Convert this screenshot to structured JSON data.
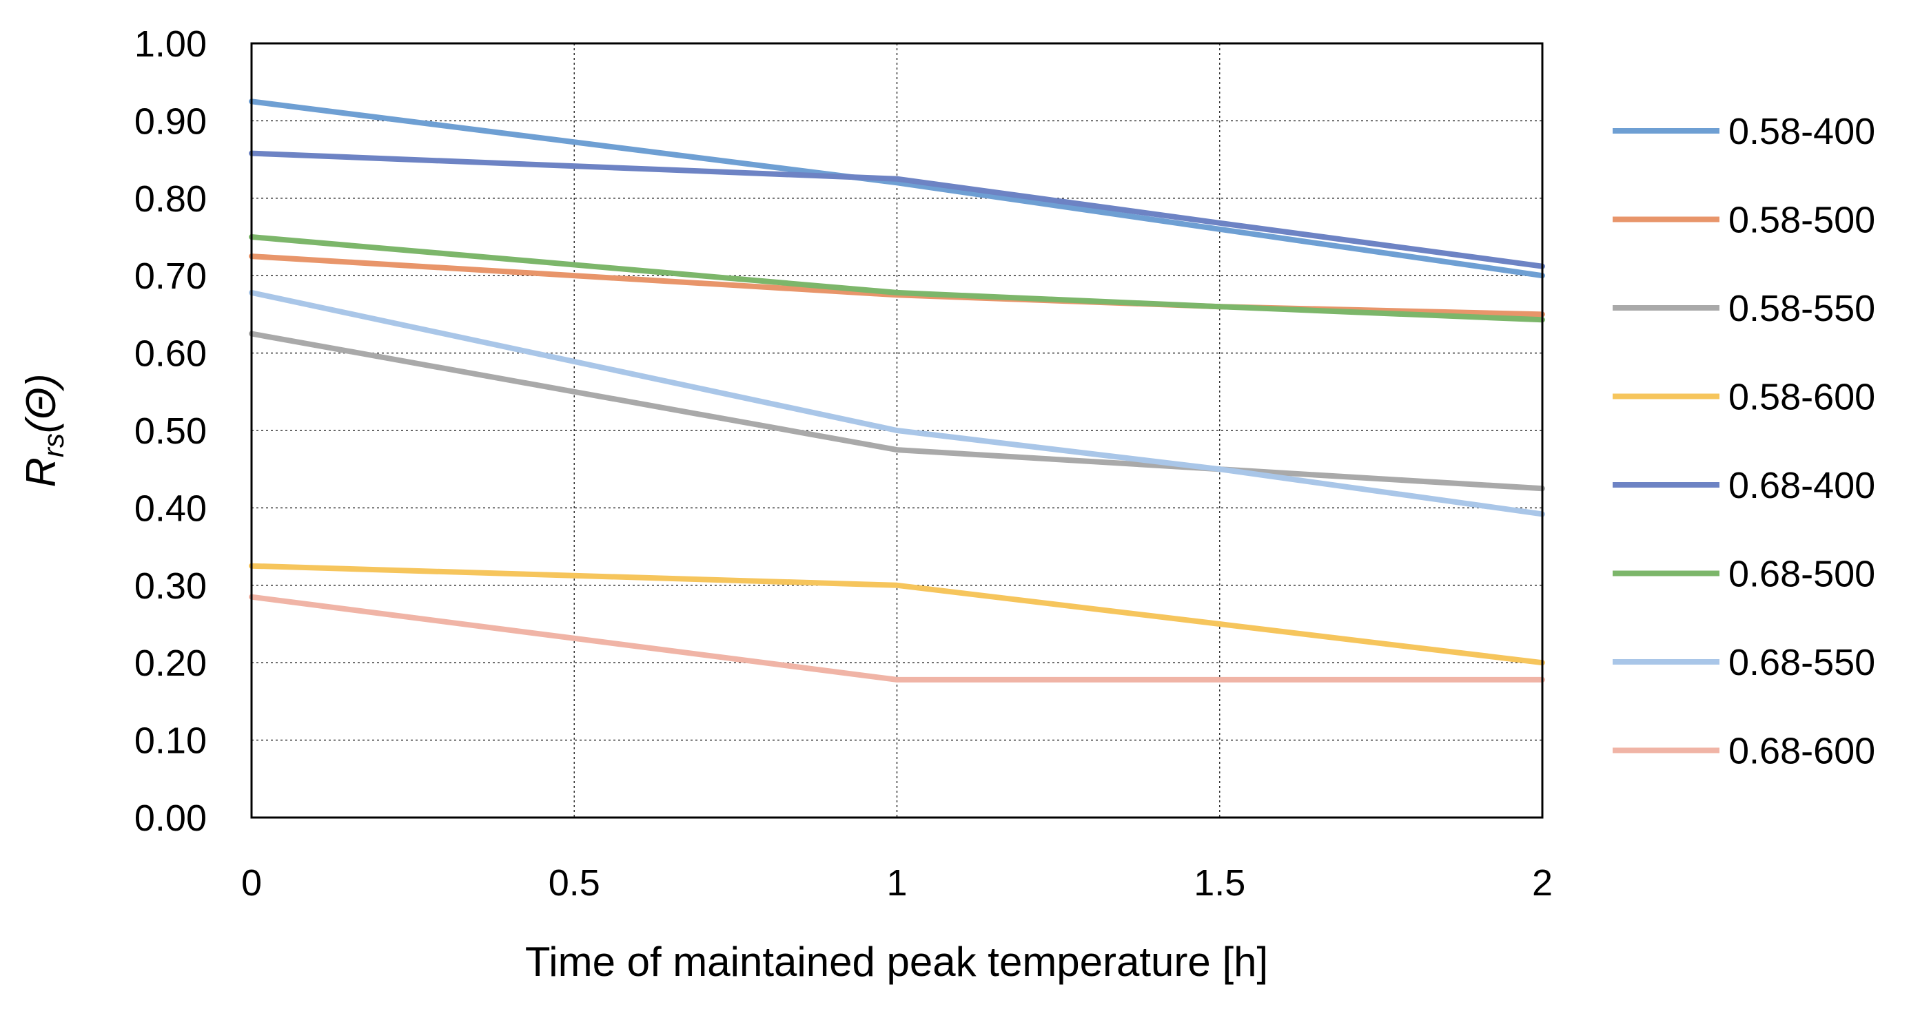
{
  "chart_data": {
    "type": "line",
    "title": "",
    "xlabel": "Time of maintained peak temperature [h]",
    "ylabel": {
      "main": "R",
      "sub": "rs",
      "arg": "(Θ)"
    },
    "x": [
      0,
      1,
      1.5,
      2
    ],
    "xlim": [
      0,
      2
    ],
    "ylim": [
      0,
      1
    ],
    "xticks": [
      "0",
      "0.5",
      "1",
      "1.5",
      "2"
    ],
    "yticks": [
      "0.00",
      "0.10",
      "0.20",
      "0.30",
      "0.40",
      "0.50",
      "0.60",
      "0.70",
      "0.80",
      "0.90",
      "1.00"
    ],
    "grid": true,
    "legend_position": "right",
    "series": [
      {
        "name": "0.58-400",
        "color": "#6e9fd3",
        "values": [
          0.925,
          0.82,
          0.76,
          0.7
        ]
      },
      {
        "name": "0.58-500",
        "color": "#e8956a",
        "values": [
          0.725,
          0.675,
          0.66,
          0.65
        ]
      },
      {
        "name": "0.58-550",
        "color": "#a9a9a9",
        "values": [
          0.625,
          0.475,
          0.45,
          0.425
        ]
      },
      {
        "name": "0.58-600",
        "color": "#f6c55c",
        "values": [
          0.325,
          0.3,
          0.25,
          0.2
        ]
      },
      {
        "name": "0.68-400",
        "color": "#6d83c4",
        "values": [
          0.858,
          0.825,
          0.768,
          0.712
        ]
      },
      {
        "name": "0.68-500",
        "color": "#7cb66a",
        "values": [
          0.75,
          0.678,
          0.66,
          0.643
        ]
      },
      {
        "name": "0.68-550",
        "color": "#a9c6e8",
        "values": [
          0.678,
          0.5,
          0.45,
          0.392
        ]
      },
      {
        "name": "0.68-600",
        "color": "#f0b4a6",
        "values": [
          0.285,
          0.178,
          0.178,
          0.178
        ]
      }
    ]
  }
}
